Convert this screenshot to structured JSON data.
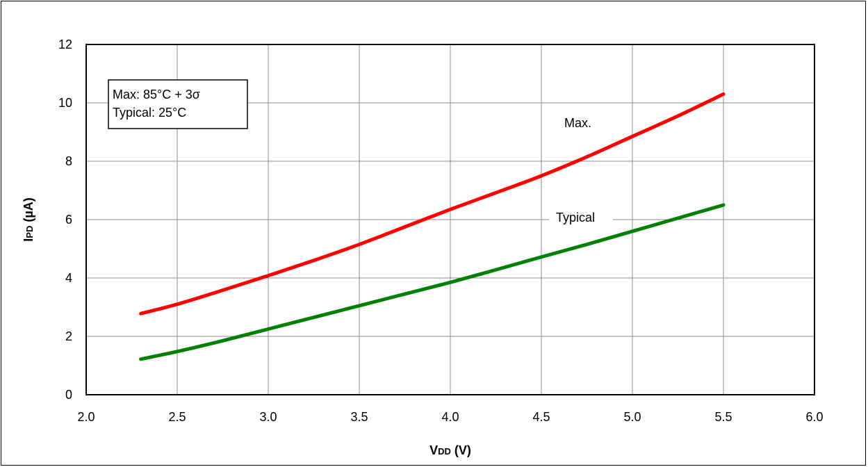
{
  "chart_data": {
    "type": "line",
    "xlabel_main": "V",
    "xlabel_sub": "DD",
    "xlabel_unit": " (V)",
    "ylabel_main": "I",
    "ylabel_sub": "PD",
    "ylabel_unit": " (µA)",
    "xlim": [
      2.0,
      6.0
    ],
    "ylim": [
      0,
      12
    ],
    "x_ticks": [
      "2.0",
      "2.5",
      "3.0",
      "3.5",
      "4.0",
      "4.5",
      "5.0",
      "5.5",
      "6.0"
    ],
    "y_ticks": [
      "0",
      "2",
      "4",
      "6",
      "8",
      "10",
      "12"
    ],
    "grid": true,
    "legend_box": {
      "line1": "Max: 85°C + 3σ",
      "line2": "Typical: 25°C"
    },
    "series": [
      {
        "name": "Max.",
        "color": "#ff0000",
        "x": [
          2.3,
          2.5,
          2.75,
          3.0,
          3.25,
          3.5,
          3.75,
          4.0,
          4.25,
          4.5,
          4.75,
          5.0,
          5.25,
          5.5
        ],
        "y": [
          2.78,
          3.1,
          3.58,
          4.08,
          4.6,
          5.15,
          5.75,
          6.35,
          6.92,
          7.5,
          8.15,
          8.85,
          9.55,
          10.3
        ]
      },
      {
        "name": "Typical",
        "color": "#008000",
        "x": [
          2.3,
          2.5,
          2.75,
          3.0,
          3.25,
          3.5,
          3.75,
          4.0,
          4.25,
          4.5,
          4.75,
          5.0,
          5.25,
          5.5
        ],
        "y": [
          1.22,
          1.48,
          1.85,
          2.25,
          2.65,
          3.05,
          3.45,
          3.85,
          4.28,
          4.72,
          5.15,
          5.6,
          6.05,
          6.5
        ]
      }
    ]
  }
}
